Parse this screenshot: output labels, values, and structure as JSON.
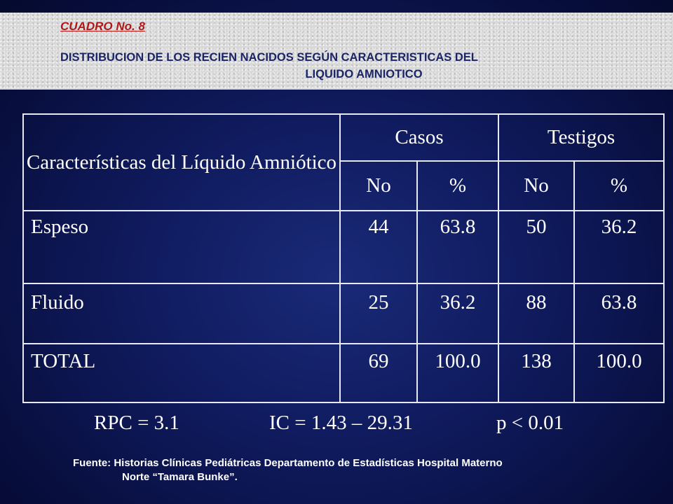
{
  "header": {
    "label": "CUADRO No. 8",
    "title_line1": "DISTRIBUCION DE LOS RECIEN NACIDOS SEGÚN CARACTERISTICAS DEL",
    "title_line2": "LIQUIDO AMNIOTICO"
  },
  "table": {
    "col_header": "Características del Líquido Amniótico",
    "group_casos": "Casos",
    "group_testigos": "Testigos",
    "sub_no": "No",
    "sub_pct": "%",
    "rows": [
      {
        "label": "Espeso",
        "casos_no": "44",
        "casos_pct": "63.8",
        "testigos_no": "50",
        "testigos_pct": "36.2"
      },
      {
        "label": "Fluido",
        "casos_no": "25",
        "casos_pct": "36.2",
        "testigos_no": "88",
        "testigos_pct": "63.8"
      },
      {
        "label": "TOTAL",
        "casos_no": "69",
        "casos_pct": "100.0",
        "testigos_no": "138",
        "testigos_pct": "100.0"
      }
    ]
  },
  "stats": {
    "rpc": "RPC = 3.1",
    "ic": "IC = 1.43 – 29.31",
    "p": "p < 0.01"
  },
  "source": {
    "line1": "Fuente: Historias Clínicas Pediátricas Departamento de Estadísticas Hospital Materno",
    "line2": "Norte “Tamara Bunke”."
  }
}
